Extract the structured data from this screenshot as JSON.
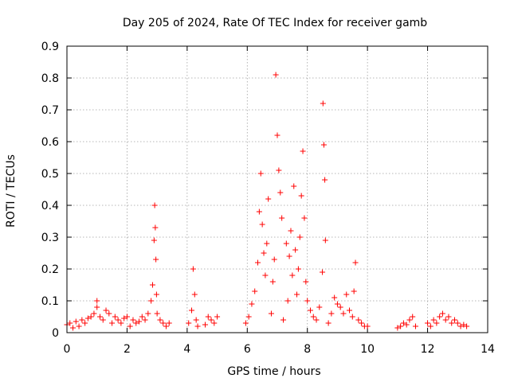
{
  "chart_data": {
    "type": "scatter",
    "title": "Day 205 of 2024, Rate Of TEC Index for receiver gamb",
    "xlabel": "GPS time / hours",
    "ylabel": "ROTI / TECUs",
    "xlim": [
      0,
      14
    ],
    "ylim": [
      0,
      0.9
    ],
    "x_ticks": [
      "0",
      "2",
      "4",
      "6",
      "8",
      "10",
      "12",
      "14"
    ],
    "y_ticks": [
      "0",
      "0.1",
      "0.2",
      "0.3",
      "0.4",
      "0.5",
      "0.6",
      "0.7",
      "0.8",
      "0.9"
    ],
    "grid": true,
    "marker": "+",
    "color": "#ff0000",
    "series": [
      {
        "x": [
          0.0,
          0.1,
          0.2,
          0.3,
          0.4,
          0.5,
          0.6,
          0.7,
          0.8,
          0.9,
          1.0,
          1.0,
          1.1,
          1.2,
          1.3,
          1.4,
          1.5,
          1.6,
          1.7,
          1.8,
          1.9,
          2.0,
          2.1,
          2.2,
          2.3,
          2.4,
          2.5,
          2.6,
          2.7,
          2.8,
          2.85,
          2.9,
          2.92,
          2.94,
          2.96,
          2.98,
          3.0,
          3.1,
          3.2,
          3.3,
          3.4,
          4.05,
          4.15,
          4.2,
          4.25,
          4.3,
          4.35,
          4.6,
          4.7,
          4.8,
          4.9,
          5.0,
          5.95,
          6.05,
          6.15,
          6.25,
          6.35,
          6.4,
          6.45,
          6.5,
          6.55,
          6.6,
          6.65,
          6.7,
          6.8,
          6.85,
          6.9,
          6.95,
          7.0,
          7.05,
          7.1,
          7.15,
          7.2,
          7.3,
          7.35,
          7.4,
          7.45,
          7.5,
          7.55,
          7.6,
          7.65,
          7.7,
          7.75,
          7.8,
          7.85,
          7.9,
          7.95,
          8.0,
          8.1,
          8.2,
          8.3,
          8.4,
          8.5,
          8.52,
          8.55,
          8.58,
          8.6,
          8.7,
          8.8,
          8.9,
          9.0,
          9.1,
          9.2,
          9.3,
          9.4,
          9.5,
          9.55,
          9.6,
          9.7,
          9.8,
          9.9,
          10.0,
          11.0,
          11.1,
          11.2,
          11.3,
          11.4,
          11.5,
          11.6,
          12.0,
          12.1,
          12.2,
          12.3,
          12.4,
          12.5,
          12.6,
          12.7,
          12.8,
          12.9,
          13.0,
          13.1,
          13.2,
          13.3
        ],
        "y": [
          0.025,
          0.03,
          0.015,
          0.035,
          0.02,
          0.04,
          0.03,
          0.045,
          0.05,
          0.06,
          0.1,
          0.08,
          0.05,
          0.04,
          0.07,
          0.06,
          0.03,
          0.05,
          0.04,
          0.03,
          0.045,
          0.05,
          0.02,
          0.04,
          0.03,
          0.035,
          0.05,
          0.04,
          0.06,
          0.1,
          0.15,
          0.29,
          0.4,
          0.33,
          0.23,
          0.12,
          0.06,
          0.04,
          0.03,
          0.02,
          0.03,
          0.03,
          0.07,
          0.2,
          0.12,
          0.04,
          0.02,
          0.025,
          0.05,
          0.04,
          0.03,
          0.05,
          0.03,
          0.05,
          0.09,
          0.13,
          0.22,
          0.38,
          0.5,
          0.34,
          0.25,
          0.18,
          0.28,
          0.42,
          0.06,
          0.16,
          0.23,
          0.81,
          0.62,
          0.51,
          0.44,
          0.36,
          0.04,
          0.28,
          0.1,
          0.24,
          0.32,
          0.18,
          0.46,
          0.26,
          0.12,
          0.2,
          0.3,
          0.43,
          0.57,
          0.36,
          0.16,
          0.1,
          0.07,
          0.05,
          0.04,
          0.08,
          0.19,
          0.72,
          0.59,
          0.48,
          0.29,
          0.03,
          0.06,
          0.11,
          0.09,
          0.08,
          0.06,
          0.12,
          0.07,
          0.05,
          0.13,
          0.22,
          0.04,
          0.03,
          0.02,
          0.02,
          0.015,
          0.02,
          0.03,
          0.025,
          0.04,
          0.05,
          0.02,
          0.03,
          0.02,
          0.04,
          0.03,
          0.05,
          0.06,
          0.04,
          0.05,
          0.03,
          0.04,
          0.03,
          0.02,
          0.025,
          0.02
        ]
      }
    ]
  }
}
